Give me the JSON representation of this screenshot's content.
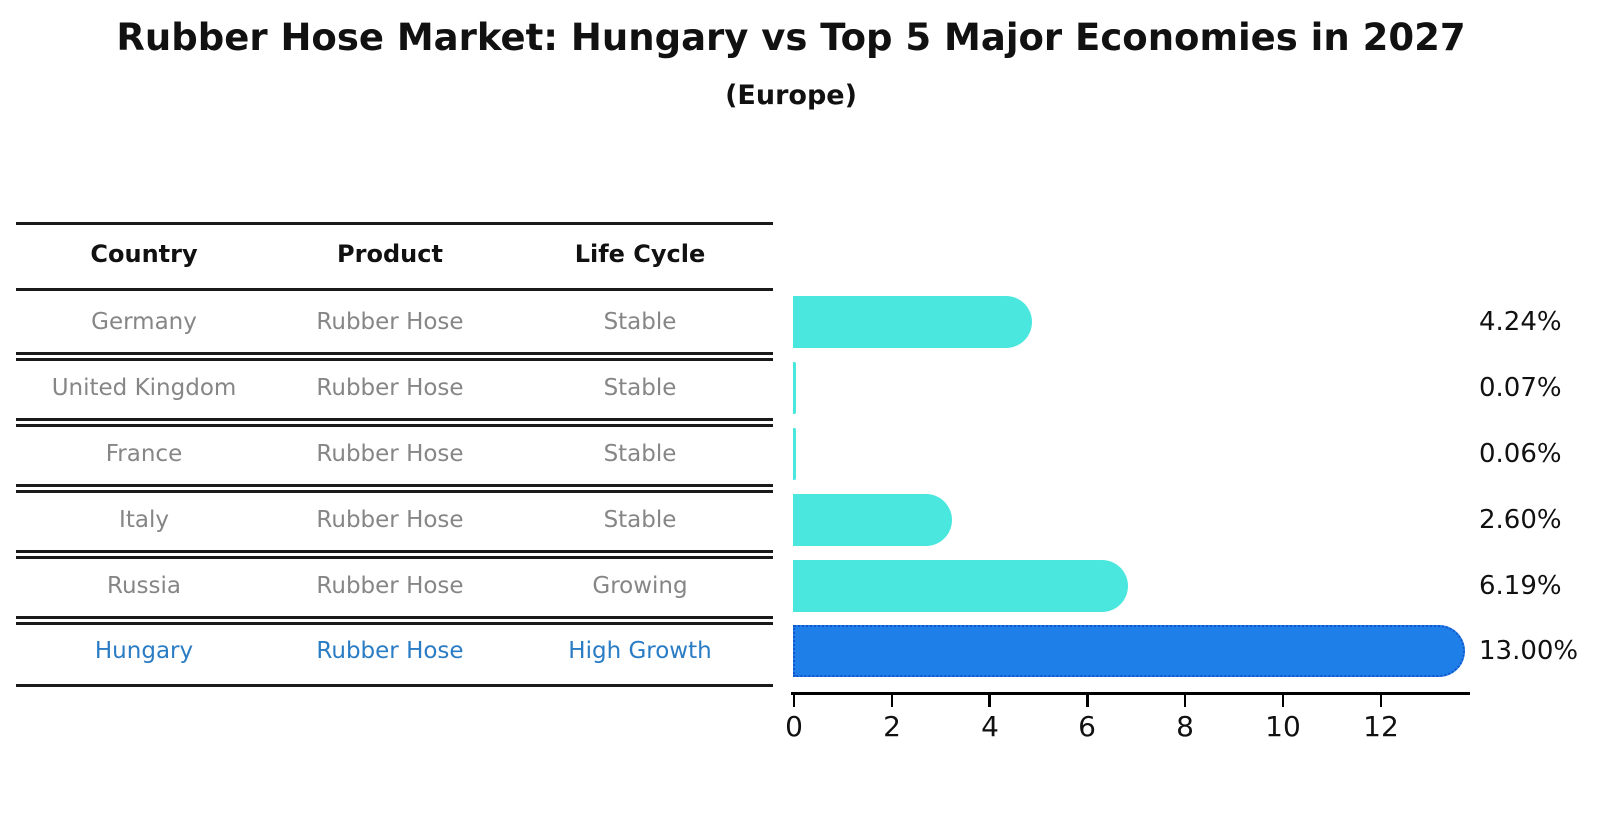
{
  "header": {
    "title": "Rubber Hose Market: Hungary vs Top 5 Major Economies in 2027",
    "subtitle": "(Europe)"
  },
  "table": {
    "headers": [
      "Country",
      "Product",
      "Life Cycle"
    ],
    "rows": [
      {
        "country": "Germany",
        "product": "Rubber Hose",
        "life_cycle": "Stable",
        "highlight": false
      },
      {
        "country": "United Kingdom",
        "product": "Rubber Hose",
        "life_cycle": "Stable",
        "highlight": false
      },
      {
        "country": "France",
        "product": "Rubber Hose",
        "life_cycle": "Stable",
        "highlight": false
      },
      {
        "country": "Italy",
        "product": "Rubber Hose",
        "life_cycle": "Stable",
        "highlight": false
      },
      {
        "country": "Russia",
        "product": "Rubber Hose",
        "life_cycle": "Growing",
        "highlight": false
      },
      {
        "country": "Hungary",
        "product": "Rubber Hose",
        "life_cycle": "High Growth",
        "highlight": true
      }
    ]
  },
  "chart_data": {
    "type": "bar",
    "orientation": "horizontal",
    "title": "Rubber Hose Market: Hungary vs Top 5 Major Economies in 2027",
    "subtitle": "(Europe)",
    "categories": [
      "Germany",
      "United Kingdom",
      "France",
      "Italy",
      "Russia",
      "Hungary"
    ],
    "values": [
      4.24,
      0.07,
      0.06,
      2.6,
      6.19,
      13.0
    ],
    "value_labels": [
      "4.24%",
      "0.07%",
      "0.06%",
      "2.60%",
      "6.19%",
      "13.00%"
    ],
    "x_ticks": [
      "0",
      "2",
      "4",
      "6",
      "8",
      "10",
      "12"
    ],
    "xlim": [
      0,
      13.9
    ],
    "grid": false,
    "legend": false,
    "highlight_category": "Hungary",
    "bar_color": "#4ae7df",
    "highlight_bar_color": "#1e7fe8",
    "highlight_border_color": "#1456cc",
    "highlight_text_color": "#2a7cc4",
    "text_color": "#868686"
  }
}
